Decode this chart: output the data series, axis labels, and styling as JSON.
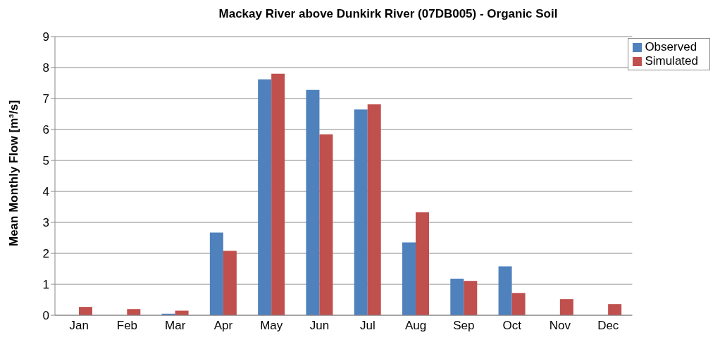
{
  "chart_data": {
    "type": "bar",
    "title": "Mackay River above Dunkirk River (07DB005) - Organic Soil",
    "ylabel": "Mean Monthly Flow [m³/s]",
    "categories": [
      "Jan",
      "Feb",
      "Mar",
      "Apr",
      "May",
      "Jun",
      "Jul",
      "Aug",
      "Sep",
      "Oct",
      "Nov",
      "Dec"
    ],
    "series": [
      {
        "name": "Observed",
        "color": "#4f81bd",
        "values": [
          0,
          0,
          0.05,
          2.67,
          7.62,
          7.28,
          6.65,
          2.35,
          1.18,
          1.58,
          0,
          0
        ]
      },
      {
        "name": "Simulated",
        "color": "#c0504d",
        "values": [
          0.27,
          0.2,
          0.15,
          2.08,
          7.8,
          5.84,
          6.81,
          3.33,
          1.11,
          0.72,
          0.52,
          0.36
        ]
      }
    ],
    "ylim": [
      0,
      9
    ],
    "yticks": [
      0,
      1,
      2,
      3,
      4,
      5,
      6,
      7,
      8,
      9
    ],
    "grid": "y",
    "legend": "top right"
  }
}
